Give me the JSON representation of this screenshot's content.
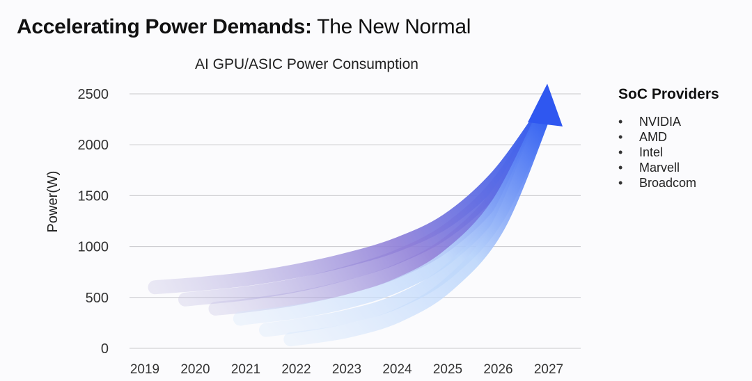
{
  "slide": {
    "title_bold": "Accelerating Power Demands:",
    "title_rest": " The New Normal"
  },
  "legend": {
    "title": "SoC Providers",
    "items": [
      "NVIDIA",
      "AMD",
      "Intel",
      "Marvell",
      "Broadcom"
    ]
  },
  "colors": {
    "grid": "#c8c8cc",
    "curve_start": "#c7c3e4",
    "curve_mid": "#8f7fd8",
    "curve_end": "#2f5cf0",
    "curve_light_end": "#bcd6fb",
    "arrow": "#2f57f0"
  },
  "chart_data": {
    "type": "line",
    "title": "AI GPU/ASIC Power Consumption",
    "xlabel": "",
    "ylabel": "Power(W)",
    "categories": [
      "2019",
      "2020",
      "2021",
      "2022",
      "2023",
      "2024",
      "2025",
      "2026",
      "2027"
    ],
    "yticks": [
      0,
      500,
      1000,
      1500,
      2000,
      2500
    ],
    "ylim": [
      0,
      2500
    ],
    "grid": true,
    "legend_position": "right",
    "series": [
      {
        "x": [
          2019.2,
          2020,
          2021,
          2022,
          2023,
          2024,
          2025,
          2026,
          2026.95
        ],
        "values": [
          600,
          630,
          680,
          760,
          870,
          1020,
          1260,
          1700,
          2350
        ]
      },
      {
        "x": [
          2019.8,
          2020,
          2021,
          2022,
          2023,
          2024,
          2025,
          2026,
          2026.95
        ],
        "values": [
          480,
          490,
          540,
          620,
          740,
          900,
          1160,
          1620,
          2350
        ]
      },
      {
        "x": [
          2020.4,
          2021,
          2022,
          2023,
          2024,
          2025,
          2026,
          2026.95
        ],
        "values": [
          390,
          420,
          490,
          600,
          760,
          1030,
          1520,
          2350
        ]
      },
      {
        "x": [
          2020.9,
          2021,
          2022,
          2023,
          2024,
          2025,
          2026,
          2026.95
        ],
        "values": [
          290,
          300,
          360,
          460,
          620,
          900,
          1420,
          2350
        ]
      },
      {
        "x": [
          2021.4,
          2022,
          2023,
          2024,
          2025,
          2026,
          2026.95
        ],
        "values": [
          180,
          220,
          310,
          460,
          750,
          1300,
          2350
        ]
      },
      {
        "x": [
          2021.9,
          2022,
          2023,
          2024,
          2025,
          2026,
          2026.95
        ],
        "values": [
          90,
          95,
          170,
          320,
          620,
          1200,
          2350
        ]
      }
    ]
  }
}
